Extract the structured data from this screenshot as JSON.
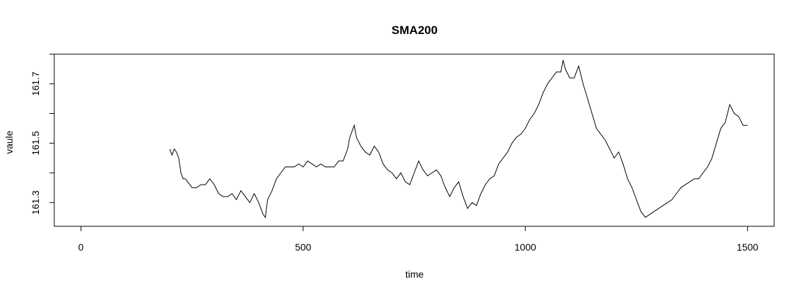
{
  "chart_data": {
    "type": "line",
    "title": "SMA200",
    "xlabel": "time",
    "ylabel": "vaule",
    "xlim": [
      -60,
      1560
    ],
    "ylim": [
      161.22,
      161.8
    ],
    "xticks": [
      0,
      500,
      1000,
      1500
    ],
    "xtick_labels": [
      "0",
      "500",
      "1000",
      "1500"
    ],
    "yticks": [
      161.3,
      161.4,
      161.5,
      161.6,
      161.7,
      161.8
    ],
    "ytick_labels": [
      "161.3",
      "",
      "161.5",
      "",
      "161.7",
      ""
    ],
    "grid": false,
    "line_color": "#000000",
    "series": [
      {
        "x": [
          200,
          205,
          210,
          215,
          220,
          225,
          230,
          235,
          240,
          245,
          250,
          260,
          270,
          280,
          290,
          300,
          310,
          320,
          330,
          340,
          350,
          360,
          370,
          380,
          390,
          400,
          410,
          415,
          420,
          430,
          440,
          450,
          460,
          470,
          480,
          490,
          500,
          510,
          520,
          530,
          540,
          550,
          560,
          570,
          580,
          590,
          600,
          605,
          610,
          615,
          620,
          630,
          640,
          650,
          660,
          670,
          680,
          690,
          700,
          710,
          720,
          730,
          740,
          750,
          760,
          770,
          780,
          790,
          800,
          810,
          820,
          830,
          840,
          850,
          860,
          870,
          880,
          890,
          900,
          910,
          920,
          930,
          940,
          950,
          960,
          970,
          980,
          990,
          1000,
          1010,
          1020,
          1030,
          1040,
          1050,
          1060,
          1070,
          1080,
          1085,
          1090,
          1100,
          1110,
          1120,
          1130,
          1140,
          1150,
          1160,
          1170,
          1180,
          1190,
          1200,
          1210,
          1220,
          1230,
          1240,
          1250,
          1260,
          1270,
          1280,
          1290,
          1300,
          1310,
          1320,
          1330,
          1340,
          1350,
          1360,
          1370,
          1380,
          1390,
          1400,
          1410,
          1420,
          1430,
          1440,
          1450,
          1460,
          1470,
          1480,
          1490,
          1500
        ],
        "y": [
          161.48,
          161.46,
          161.48,
          161.47,
          161.45,
          161.4,
          161.38,
          161.38,
          161.37,
          161.36,
          161.35,
          161.35,
          161.36,
          161.36,
          161.38,
          161.36,
          161.33,
          161.32,
          161.32,
          161.33,
          161.31,
          161.34,
          161.32,
          161.3,
          161.33,
          161.3,
          161.26,
          161.25,
          161.31,
          161.34,
          161.38,
          161.4,
          161.42,
          161.42,
          161.42,
          161.43,
          161.42,
          161.44,
          161.43,
          161.42,
          161.43,
          161.42,
          161.42,
          161.42,
          161.44,
          161.44,
          161.48,
          161.52,
          161.54,
          161.56,
          161.52,
          161.49,
          161.47,
          161.46,
          161.49,
          161.47,
          161.43,
          161.41,
          161.4,
          161.38,
          161.4,
          161.37,
          161.36,
          161.4,
          161.44,
          161.41,
          161.39,
          161.4,
          161.41,
          161.39,
          161.35,
          161.32,
          161.35,
          161.37,
          161.32,
          161.28,
          161.3,
          161.29,
          161.33,
          161.36,
          161.38,
          161.39,
          161.43,
          161.45,
          161.47,
          161.5,
          161.52,
          161.53,
          161.55,
          161.58,
          161.6,
          161.63,
          161.67,
          161.7,
          161.72,
          161.74,
          161.74,
          161.78,
          161.75,
          161.72,
          161.72,
          161.76,
          161.7,
          161.65,
          161.6,
          161.55,
          161.53,
          161.51,
          161.48,
          161.45,
          161.47,
          161.43,
          161.38,
          161.35,
          161.31,
          161.27,
          161.25,
          161.26,
          161.27,
          161.28,
          161.29,
          161.3,
          161.31,
          161.33,
          161.35,
          161.36,
          161.37,
          161.38,
          161.38,
          161.4,
          161.42,
          161.45,
          161.5,
          161.55,
          161.57,
          161.63,
          161.6,
          161.59,
          161.56,
          161.56
        ]
      }
    ]
  }
}
